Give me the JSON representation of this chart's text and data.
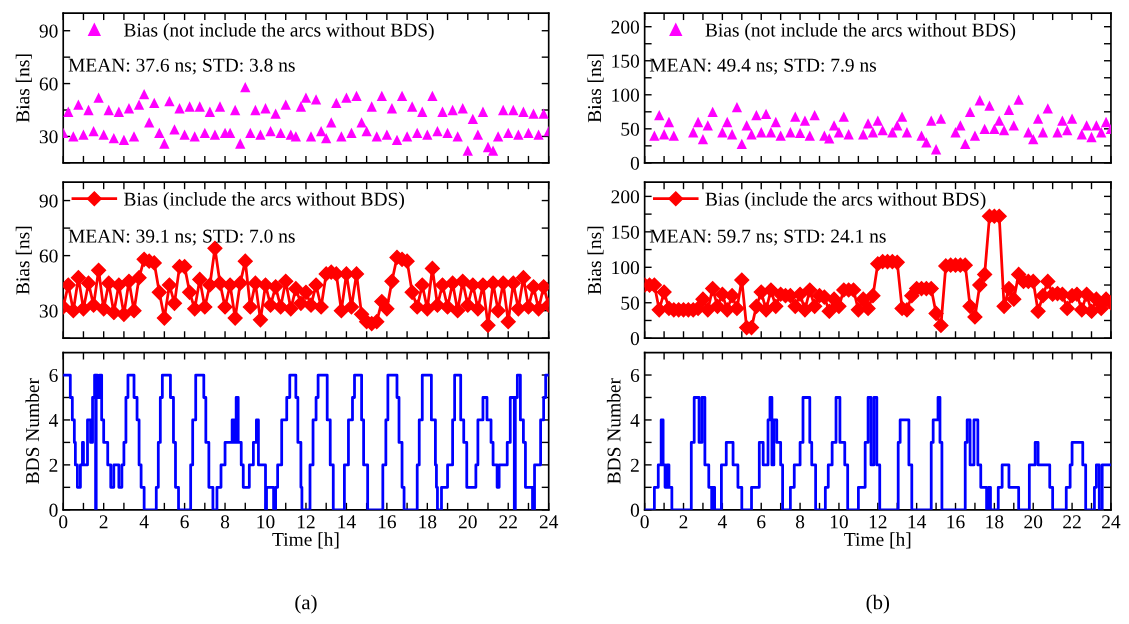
{
  "chart_data": [
    {
      "type": "scatter",
      "ylabel": "Bias [ns]",
      "xlim": [
        0,
        24
      ],
      "ylim": [
        15,
        100
      ],
      "yticks": [
        {
          "value": 15,
          "label": null
        },
        30,
        {
          "value": 45,
          "label": null
        },
        60,
        {
          "value": 75,
          "label": null
        },
        90
      ],
      "xticks": [
        0,
        {
          "value": 1,
          "label": null
        },
        2,
        {
          "value": 3,
          "label": null
        },
        4,
        {
          "value": 5,
          "label": null
        },
        6,
        {
          "value": 7,
          "label": null
        },
        8,
        {
          "value": 9,
          "label": null
        },
        10,
        {
          "value": 11,
          "label": null
        },
        12,
        {
          "value": 13,
          "label": null
        },
        14,
        {
          "value": 15,
          "label": null
        },
        16,
        {
          "value": 17,
          "label": null
        },
        18,
        {
          "value": 19,
          "label": null
        },
        20,
        {
          "value": 21,
          "label": null
        },
        22,
        {
          "value": 23,
          "label": null
        },
        24
      ],
      "tick_labels": "y",
      "legend": "top left",
      "marker": "triangle",
      "annotations": [
        "MEAN: 37.6 ns; STD: 3.8 ns"
      ],
      "x": [
        0,
        0.25,
        0.5,
        0.75,
        1,
        1.25,
        1.5,
        1.75,
        2,
        2.25,
        2.5,
        2.75,
        3,
        3.25,
        3.5,
        3.75,
        4,
        4.25,
        4.5,
        4.75,
        5,
        5.25,
        5.5,
        5.75,
        6,
        6.25,
        6.5,
        6.75,
        7,
        7.25,
        7.5,
        7.75,
        8,
        8.25,
        8.5,
        8.75,
        9,
        9.25,
        9.5,
        9.75,
        10,
        10.25,
        10.5,
        10.75,
        11,
        11.25,
        11.5,
        11.75,
        12,
        12.25,
        12.5,
        12.75,
        13,
        13.25,
        13.5,
        13.75,
        14,
        14.25,
        14.5,
        14.75,
        15,
        15.25,
        15.5,
        15.75,
        16,
        16.25,
        16.5,
        16.75,
        17,
        17.25,
        17.5,
        17.75,
        18,
        18.25,
        18.5,
        18.75,
        19,
        19.25,
        19.5,
        19.75,
        20,
        20.25,
        20.5,
        20.75,
        21,
        21.25,
        21.5,
        21.75,
        22,
        22.25,
        22.5,
        22.75,
        23,
        23.25,
        23.5,
        23.75,
        24
      ],
      "series": [
        {
          "name": "Bias (not include the arcs without BDS)",
          "color": "#ff00ff",
          "values": [
            32,
            44,
            30,
            48,
            31,
            45,
            33,
            52,
            31,
            45,
            29,
            44,
            28,
            46,
            30,
            48,
            54,
            38,
            49,
            32,
            26,
            50,
            34,
            46,
            31,
            47,
            30,
            47,
            32,
            44,
            31,
            47,
            32,
            32,
            45,
            26,
            58,
            32,
            45,
            31,
            46,
            33,
            43,
            32,
            48,
            31,
            30,
            47,
            52,
            30,
            51,
            33,
            29,
            38,
            49,
            30,
            52,
            32,
            53,
            38,
            33,
            47,
            30,
            53,
            31,
            46,
            28,
            53,
            30,
            47,
            32,
            44,
            31,
            53,
            33,
            44,
            32,
            45,
            30,
            46,
            22,
            40,
            31,
            44,
            24,
            22,
            30,
            45,
            32,
            45,
            31,
            44,
            32,
            43,
            31,
            43,
            33
          ]
        }
      ]
    },
    {
      "type": "line",
      "ylabel": "Bias [ns]",
      "xlim": [
        0,
        24
      ],
      "ylim": [
        15,
        100
      ],
      "yticks": [
        {
          "value": 15,
          "label": null
        },
        30,
        {
          "value": 45,
          "label": null
        },
        60,
        {
          "value": 75,
          "label": null
        },
        90
      ],
      "xticks": [
        0,
        {
          "value": 1,
          "label": null
        },
        2,
        {
          "value": 3,
          "label": null
        },
        4,
        {
          "value": 5,
          "label": null
        },
        6,
        {
          "value": 7,
          "label": null
        },
        8,
        {
          "value": 9,
          "label": null
        },
        10,
        {
          "value": 11,
          "label": null
        },
        12,
        {
          "value": 13,
          "label": null
        },
        14,
        {
          "value": 15,
          "label": null
        },
        16,
        {
          "value": 17,
          "label": null
        },
        18,
        {
          "value": 19,
          "label": null
        },
        20,
        {
          "value": 21,
          "label": null
        },
        22,
        {
          "value": 23,
          "label": null
        },
        24
      ],
      "tick_labels": "y",
      "legend": "top left",
      "marker": "diamond",
      "line_style": "solid",
      "annotations": [
        "MEAN: 39.1 ns; STD: 7.0 ns"
      ],
      "x": [
        0,
        0.25,
        0.5,
        0.75,
        1,
        1.25,
        1.5,
        1.75,
        2,
        2.25,
        2.5,
        2.75,
        3,
        3.25,
        3.5,
        3.75,
        4,
        4.25,
        4.5,
        4.75,
        5,
        5.25,
        5.5,
        5.75,
        6,
        6.25,
        6.5,
        6.75,
        7,
        7.25,
        7.5,
        7.75,
        8,
        8.25,
        8.5,
        8.75,
        9,
        9.25,
        9.5,
        9.75,
        10,
        10.25,
        10.5,
        10.75,
        11,
        11.25,
        11.5,
        11.75,
        12,
        12.25,
        12.5,
        12.75,
        13,
        13.25,
        13.5,
        13.75,
        14,
        14.25,
        14.5,
        14.75,
        15,
        15.25,
        15.5,
        15.75,
        16,
        16.25,
        16.5,
        16.75,
        17,
        17.25,
        17.5,
        17.75,
        18,
        18.25,
        18.5,
        18.75,
        19,
        19.25,
        19.5,
        19.75,
        20,
        20.25,
        20.5,
        20.75,
        21,
        21.25,
        21.5,
        21.75,
        22,
        22.25,
        22.5,
        22.75,
        23,
        23.25,
        23.5,
        23.75,
        24
      ],
      "series": [
        {
          "name": "Bias (include the arcs without BDS)",
          "color": "#ff0000",
          "values": [
            32,
            44,
            30,
            48,
            31,
            45,
            33,
            52,
            31,
            45,
            29,
            44,
            28,
            46,
            30,
            48,
            58,
            57,
            56,
            40,
            26,
            44,
            34,
            54,
            54,
            40,
            31,
            47,
            32,
            44,
            64,
            45,
            32,
            44,
            26,
            45,
            57,
            32,
            45,
            25,
            44,
            33,
            43,
            32,
            46,
            31,
            42,
            34,
            40,
            33,
            44,
            32,
            50,
            51,
            50,
            30,
            50,
            32,
            50,
            28,
            24,
            23,
            24,
            35,
            31,
            46,
            59,
            58,
            57,
            40,
            32,
            44,
            31,
            53,
            33,
            44,
            32,
            45,
            30,
            46,
            33,
            44,
            31,
            44,
            22,
            45,
            30,
            45,
            24,
            45,
            31,
            48,
            32,
            43,
            31,
            43,
            33
          ]
        }
      ]
    },
    {
      "type": "step",
      "ylabel": "BDS Number",
      "xlabel": "Time [h]",
      "xlim": [
        0,
        24
      ],
      "ylim": [
        0,
        7
      ],
      "yticks": [
        0,
        {
          "value": 1,
          "label": null
        },
        2,
        {
          "value": 3,
          "label": null
        },
        4,
        {
          "value": 5,
          "label": null
        },
        6
      ],
      "xticks": [
        0,
        {
          "value": 1,
          "label": null
        },
        2,
        {
          "value": 3,
          "label": null
        },
        4,
        {
          "value": 5,
          "label": null
        },
        6,
        {
          "value": 7,
          "label": null
        },
        8,
        {
          "value": 9,
          "label": null
        },
        10,
        {
          "value": 11,
          "label": null
        },
        12,
        {
          "value": 13,
          "label": null
        },
        14,
        {
          "value": 15,
          "label": null
        },
        16,
        {
          "value": 17,
          "label": null
        },
        18,
        {
          "value": 19,
          "label": null
        },
        20,
        {
          "value": 21,
          "label": null
        },
        22,
        {
          "value": 23,
          "label": null
        },
        24
      ],
      "annotations": [
        "(a)"
      ],
      "x": [
        0,
        0.35,
        0.45,
        0.55,
        0.6,
        0.7,
        0.85,
        0.95,
        1.0,
        1.2,
        1.35,
        1.45,
        1.55,
        1.6,
        1.63,
        1.7,
        1.8,
        1.9,
        2.0,
        2.2,
        2.35,
        2.5,
        2.75,
        2.9,
        3.0,
        3.1,
        3.2,
        3.5,
        3.65,
        3.75,
        3.85,
        4.0,
        4.6,
        4.7,
        4.8,
        4.9,
        5.3,
        5.45,
        5.55,
        5.7,
        6.3,
        6.4,
        6.55,
        6.95,
        7.05,
        7.2,
        7.4,
        7.6,
        7.8,
        8.0,
        8.35,
        8.45,
        8.55,
        8.65,
        8.8,
        8.9,
        9.2,
        9.4,
        9.55,
        9.65,
        10.0,
        10.05,
        10.4,
        10.5,
        10.6,
        10.8,
        11.05,
        11.2,
        11.5,
        11.6,
        11.75,
        11.8,
        12.2,
        12.35,
        12.5,
        12.6,
        13.05,
        13.2,
        13.35,
        13.9,
        14.1,
        14.3,
        14.4,
        14.75,
        14.85,
        15.05,
        15.8,
        15.95,
        16.05,
        16.5,
        16.6,
        16.75,
        16.85,
        17.5,
        17.6,
        17.75,
        18.2,
        18.4,
        18.45,
        18.5,
        18.7,
        19.0,
        19.25,
        19.35,
        19.65,
        19.8,
        19.95,
        20.4,
        20.5,
        20.75,
        20.95,
        21.15,
        21.25,
        21.45,
        21.55,
        21.95,
        22.1,
        22.3,
        22.35,
        22.45,
        22.6,
        22.75,
        22.85,
        23.2,
        23.3,
        23.6,
        23.75,
        23.85,
        24
      ],
      "series": [
        {
          "color": "#0000ff",
          "values": [
            6,
            5,
            4,
            3,
            2,
            1,
            2,
            3,
            2,
            4,
            3,
            5,
            6,
            0,
            6,
            5,
            6,
            4,
            3,
            2,
            1,
            2,
            1,
            2,
            3,
            5,
            6,
            5,
            4,
            2,
            1,
            0,
            1,
            3,
            5,
            6,
            5,
            3,
            1,
            0,
            2,
            4,
            6,
            5,
            3,
            1,
            0,
            1,
            2,
            3,
            4,
            3,
            5,
            3,
            2,
            1,
            2,
            3,
            4,
            2,
            0,
            1,
            0,
            1,
            2,
            4,
            5,
            6,
            5,
            3,
            1,
            0,
            2,
            4,
            5,
            6,
            4,
            2,
            0,
            2,
            4,
            5,
            6,
            4,
            2,
            0,
            2,
            4,
            6,
            5,
            3,
            1,
            0,
            2,
            4,
            6,
            4,
            2,
            1,
            0,
            1,
            2,
            4,
            6,
            4,
            3,
            1,
            2,
            4,
            5,
            4,
            3,
            2,
            1,
            2,
            3,
            5,
            0,
            5,
            6,
            4,
            3,
            1,
            0,
            2,
            4,
            5,
            6,
            6
          ]
        }
      ]
    },
    {
      "type": "scatter",
      "ylabel": "Bias [ns]",
      "xlim": [
        0,
        24
      ],
      "ylim": [
        0,
        220
      ],
      "yticks": [
        0,
        {
          "value": 25,
          "label": null
        },
        50,
        {
          "value": 75,
          "label": null
        },
        100,
        {
          "value": 125,
          "label": null
        },
        150,
        {
          "value": 175,
          "label": null
        },
        200
      ],
      "xticks": [
        0,
        {
          "value": 1,
          "label": null
        },
        2,
        {
          "value": 3,
          "label": null
        },
        4,
        {
          "value": 5,
          "label": null
        },
        6,
        {
          "value": 7,
          "label": null
        },
        8,
        {
          "value": 9,
          "label": null
        },
        10,
        {
          "value": 11,
          "label": null
        },
        12,
        {
          "value": 13,
          "label": null
        },
        14,
        {
          "value": 15,
          "label": null
        },
        16,
        {
          "value": 17,
          "label": null
        },
        18,
        {
          "value": 19,
          "label": null
        },
        20,
        {
          "value": 21,
          "label": null
        },
        22,
        {
          "value": 23,
          "label": null
        },
        24
      ],
      "tick_labels": "y",
      "legend": "top left",
      "marker": "triangle",
      "annotations": [
        "MEAN: 49.4 ns; STD: 7.9 ns"
      ],
      "x": [
        0.5,
        0.75,
        1,
        1.25,
        1.5,
        1.75,
        2,
        2.25,
        2.5,
        2.75,
        3,
        3.25,
        3.5,
        3.75,
        4,
        4.25,
        4.5,
        4.75,
        5,
        5.25,
        5.5,
        5.75,
        6,
        6.25,
        6.5,
        6.75,
        7,
        7.25,
        7.5,
        7.75,
        8,
        8.25,
        8.5,
        8.75,
        9,
        9.25,
        9.5,
        9.75,
        10,
        10.25,
        10.5,
        10.75,
        11,
        11.25,
        11.5,
        11.75,
        12,
        12.25,
        12.5,
        12.75,
        13,
        13.25,
        13.5,
        13.75,
        14,
        14.25,
        14.5,
        14.75,
        15,
        15.25,
        15.5,
        15.75,
        16,
        16.25,
        16.5,
        16.75,
        17,
        17.25,
        17.5,
        17.75,
        18,
        18.25,
        18.5,
        18.75,
        19,
        19.25,
        19.5,
        19.75,
        20,
        20.25,
        20.5,
        20.75,
        21,
        21.25,
        21.5,
        21.75,
        22,
        22.25,
        22.5,
        22.75,
        23,
        23.25,
        23.5,
        23.75,
        24
      ],
      "series": [
        {
          "name": "Bias (not include the arcs without BDS)",
          "color": "#ff00ff",
          "values": [
            40,
            70,
            42,
            60,
            40,
            null,
            null,
            null,
            45,
            60,
            35,
            55,
            75,
            null,
            45,
            60,
            42,
            82,
            28,
            55,
            42,
            70,
            45,
            72,
            45,
            60,
            40,
            null,
            45,
            68,
            44,
            62,
            40,
            70,
            null,
            40,
            36,
            55,
            45,
            68,
            42,
            null,
            null,
            42,
            58,
            45,
            62,
            48,
            null,
            45,
            55,
            68,
            45,
            null,
            null,
            40,
            30,
            62,
            20,
            65,
            null,
            null,
            45,
            55,
            28,
            75,
            40,
            92,
            50,
            84,
            50,
            62,
            48,
            78,
            55,
            93,
            null,
            45,
            35,
            65,
            45,
            80,
            null,
            45,
            62,
            48,
            65,
            null,
            42,
            55,
            38,
            55,
            45,
            60,
            50
          ]
        }
      ]
    },
    {
      "type": "line",
      "ylabel": "Bias [ns]",
      "xlim": [
        0,
        24
      ],
      "ylim": [
        0,
        220
      ],
      "yticks": [
        0,
        {
          "value": 25,
          "label": null
        },
        50,
        {
          "value": 75,
          "label": null
        },
        100,
        {
          "value": 125,
          "label": null
        },
        150,
        {
          "value": 175,
          "label": null
        },
        200
      ],
      "xticks": [
        0,
        {
          "value": 1,
          "label": null
        },
        2,
        {
          "value": 3,
          "label": null
        },
        4,
        {
          "value": 5,
          "label": null
        },
        6,
        {
          "value": 7,
          "label": null
        },
        8,
        {
          "value": 9,
          "label": null
        },
        10,
        {
          "value": 11,
          "label": null
        },
        12,
        {
          "value": 13,
          "label": null
        },
        14,
        {
          "value": 15,
          "label": null
        },
        16,
        {
          "value": 17,
          "label": null
        },
        18,
        {
          "value": 19,
          "label": null
        },
        20,
        {
          "value": 21,
          "label": null
        },
        22,
        {
          "value": 23,
          "label": null
        },
        24
      ],
      "tick_labels": "y",
      "legend": "top left",
      "marker": "diamond",
      "line_style": "solid",
      "annotations": [
        "MEAN: 59.7 ns; STD: 24.1 ns"
      ],
      "x": [
        0,
        0.25,
        0.5,
        0.75,
        1,
        1.25,
        1.5,
        1.75,
        2,
        2.25,
        2.5,
        2.75,
        3,
        3.25,
        3.5,
        3.75,
        4,
        4.25,
        4.5,
        4.75,
        5,
        5.25,
        5.5,
        5.75,
        6,
        6.25,
        6.5,
        6.75,
        7,
        7.25,
        7.5,
        7.75,
        8,
        8.25,
        8.5,
        8.75,
        9,
        9.25,
        9.5,
        9.75,
        10,
        10.25,
        10.5,
        10.75,
        11,
        11.25,
        11.5,
        11.75,
        12,
        12.25,
        12.5,
        12.75,
        13,
        13.25,
        13.5,
        13.75,
        14,
        14.25,
        14.5,
        14.75,
        15,
        15.25,
        15.5,
        15.75,
        16,
        16.25,
        16.5,
        16.75,
        17,
        17.25,
        17.5,
        17.75,
        18,
        18.25,
        18.5,
        18.75,
        19,
        19.25,
        19.5,
        19.75,
        20,
        20.25,
        20.5,
        20.75,
        21,
        21.25,
        21.5,
        21.75,
        22,
        22.25,
        22.5,
        22.75,
        23,
        23.25,
        23.5,
        23.75,
        24
      ],
      "series": [
        {
          "name": "Bias (include the arcs without BDS)",
          "color": "#ff0000",
          "values": [
            75,
            75,
            75,
            40,
            65,
            42,
            40,
            40,
            40,
            40,
            40,
            42,
            55,
            40,
            70,
            45,
            62,
            40,
            60,
            42,
            82,
            15,
            15,
            45,
            65,
            40,
            68,
            45,
            62,
            60,
            60,
            45,
            62,
            40,
            68,
            45,
            60,
            58,
            38,
            55,
            45,
            68,
            68,
            68,
            40,
            55,
            42,
            60,
            105,
            108,
            108,
            108,
            107,
            42,
            40,
            60,
            70,
            70,
            70,
            70,
            35,
            18,
            102,
            103,
            103,
            103,
            103,
            45,
            30,
            75,
            90,
            172,
            172,
            172,
            45,
            70,
            55,
            90,
            80,
            80,
            80,
            38,
            60,
            80,
            62,
            63,
            62,
            42,
            60,
            62,
            40,
            62,
            38,
            55,
            42,
            55,
            50
          ]
        }
      ]
    },
    {
      "type": "step",
      "ylabel": "BDS Number",
      "xlabel": "Time [h]",
      "xlim": [
        0,
        24
      ],
      "ylim": [
        0,
        7
      ],
      "yticks": [
        0,
        {
          "value": 1,
          "label": null
        },
        2,
        {
          "value": 3,
          "label": null
        },
        4,
        {
          "value": 5,
          "label": null
        },
        6
      ],
      "xticks": [
        0,
        {
          "value": 1,
          "label": null
        },
        2,
        {
          "value": 3,
          "label": null
        },
        4,
        {
          "value": 5,
          "label": null
        },
        6,
        {
          "value": 7,
          "label": null
        },
        8,
        {
          "value": 9,
          "label": null
        },
        10,
        {
          "value": 11,
          "label": null
        },
        12,
        {
          "value": 13,
          "label": null
        },
        14,
        {
          "value": 15,
          "label": null
        },
        16,
        {
          "value": 17,
          "label": null
        },
        18,
        {
          "value": 19,
          "label": null
        },
        20,
        {
          "value": 21,
          "label": null
        },
        22,
        {
          "value": 23,
          "label": null
        },
        24
      ],
      "annotations": [
        "(b)"
      ],
      "x": [
        0,
        0.5,
        0.7,
        0.85,
        0.95,
        1.05,
        1.15,
        1.25,
        1.4,
        2.4,
        2.55,
        2.8,
        2.95,
        3.1,
        3.3,
        3.45,
        3.5,
        3.6,
        3.95,
        4.2,
        4.55,
        4.8,
        5.0,
        5.5,
        5.9,
        6.1,
        6.35,
        6.45,
        6.55,
        6.65,
        6.8,
        7.0,
        7.1,
        7.5,
        7.7,
        8.0,
        8.15,
        8.5,
        8.6,
        8.8,
        9.3,
        9.45,
        9.65,
        9.85,
        10.05,
        10.3,
        10.45,
        11.0,
        11.35,
        11.5,
        11.65,
        11.8,
        11.95,
        12.1,
        13.05,
        13.15,
        13.6,
        13.75,
        14.75,
        14.85,
        15.1,
        15.2,
        15.3,
        16.5,
        16.6,
        16.75,
        16.95,
        17.15,
        17.3,
        17.6,
        17.7,
        17.8,
        18.2,
        18.4,
        18.75,
        19.25,
        19.8,
        20.1,
        20.25,
        20.85,
        21.0,
        21.7,
        21.9,
        22.0,
        22.55,
        22.7,
        23.15,
        23.25,
        23.4,
        23.55,
        24
      ],
      "series": [
        {
          "color": "#0000ff",
          "values": [
            0,
            1,
            2,
            4,
            2,
            1,
            2,
            1,
            0,
            3,
            5,
            3,
            5,
            2,
            1,
            0,
            1,
            0,
            2,
            3,
            2,
            1,
            0,
            1,
            3,
            2,
            4,
            5,
            2,
            4,
            3,
            2,
            0,
            1,
            2,
            3,
            5,
            3,
            2,
            0,
            1,
            2,
            3,
            5,
            3,
            2,
            0,
            1,
            3,
            5,
            2,
            5,
            2,
            0,
            3,
            4,
            2,
            0,
            3,
            4,
            5,
            3,
            0,
            3,
            4,
            2,
            4,
            2,
            1,
            0,
            1,
            0,
            1,
            2,
            1,
            0,
            2,
            3,
            2,
            1,
            0,
            1,
            2,
            3,
            2,
            0,
            1,
            2,
            0,
            2,
            2
          ]
        }
      ]
    }
  ]
}
